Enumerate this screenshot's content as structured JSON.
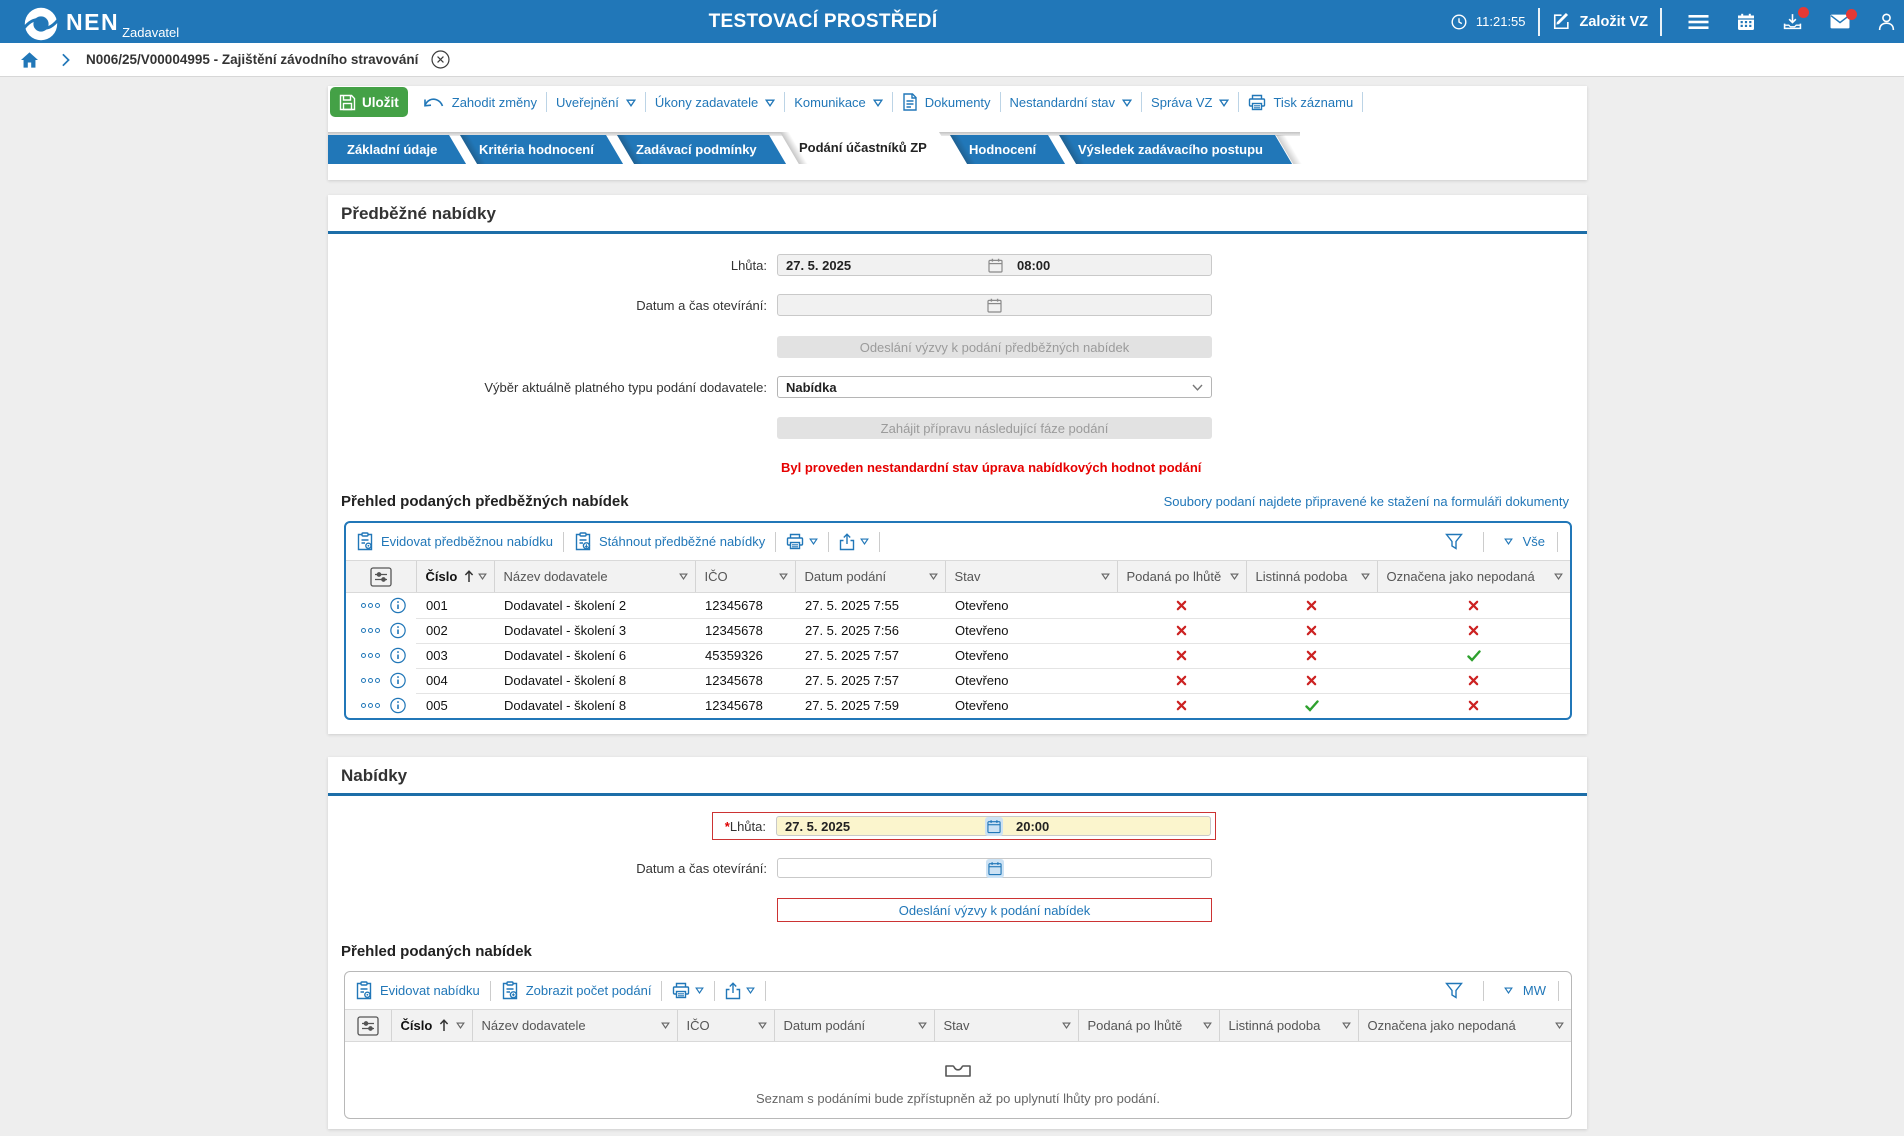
{
  "colors": {
    "brand_blue": "#2077b8",
    "save_green": "#44a146",
    "warning_red": "#e60000",
    "required_yellow": "#fbf5cd",
    "status_cross_red": "#cc2222",
    "status_check_green": "#2ea12e",
    "badge_red": "#e53935"
  },
  "header": {
    "brand": "NEN",
    "brand_sub": "Zadavatel",
    "env_title": "TESTOVACÍ PROSTŘEDÍ",
    "clock": "11:21:55",
    "new_vz_label": "Založit VZ"
  },
  "breadcrumb": {
    "item": "N006/25/V00004995 - Zajištění závodního stravování"
  },
  "toolbar": {
    "save": "Uložit",
    "items": [
      {
        "label": "Zahodit změny",
        "icon": "undo-icon",
        "dd": false
      },
      {
        "label": "Uveřejnění",
        "icon": "",
        "dd": true
      },
      {
        "label": "Úkony zadavatele",
        "icon": "",
        "dd": true
      },
      {
        "label": "Komunikace",
        "icon": "",
        "dd": true
      },
      {
        "label": "Dokumenty",
        "icon": "document-icon",
        "dd": false
      },
      {
        "label": "Nestandardní stav",
        "icon": "",
        "dd": true
      },
      {
        "label": "Správa VZ",
        "icon": "",
        "dd": true
      },
      {
        "label": "Tisk záznamu",
        "icon": "printer-icon",
        "dd": false
      }
    ]
  },
  "tabs": [
    {
      "label": "Základní údaje",
      "active": false
    },
    {
      "label": "Kritéria hodnocení",
      "active": false
    },
    {
      "label": "Zadávací podmínky",
      "active": false
    },
    {
      "label": "Podání účastníků ZP",
      "active": true
    },
    {
      "label": "Hodnocení",
      "active": false
    },
    {
      "label": "Výsledek zadávacího postupu",
      "active": false
    }
  ],
  "prelim": {
    "title": "Předběžné nabídky",
    "deadline_label": "Lhůta:",
    "deadline_date": "27. 5. 2025",
    "deadline_time": "08:00",
    "opening_label": "Datum a čas otevírání:",
    "send_call_button": "Odeslání výzvy k podání předběžných nabídek",
    "type_label": "Výběr aktuálně platného typu podání dodavatele:",
    "type_value": "Nabídka",
    "next_phase_button": "Zahájit přípravu následující fáze podání",
    "warning": "Byl proveden nestandardní stav úprava nabídkových hodnot podání",
    "overview_title": "Přehled podaných předběžných nabídek",
    "files_link": "Soubory podaní najdete připravené ke stažení na formuláři dokumenty",
    "table": {
      "actions": [
        {
          "label": "Evidovat předběžnou nabídku",
          "icon": "clipboard-gear-icon"
        },
        {
          "label": "Stáhnout předběžné nabídky",
          "icon": "clipboard-download-icon"
        }
      ],
      "filter_label": "Vše",
      "sort_column": "Číslo",
      "columns": [
        "Číslo",
        "Název dodavatele",
        "IČO",
        "Datum podání",
        "Stav",
        "Podaná po lhůtě",
        "Listinná podoba",
        "Označena jako nepodaná"
      ],
      "rows": [
        {
          "cislo": "001",
          "nazev": "Dodavatel - školení 2",
          "ico": "12345678",
          "datum": "27. 5. 2025 7:55",
          "stav": "Otevřeno",
          "po_lhute": false,
          "listinna": false,
          "nepodana": false
        },
        {
          "cislo": "002",
          "nazev": "Dodavatel - školení 3",
          "ico": "12345678",
          "datum": "27. 5. 2025 7:56",
          "stav": "Otevřeno",
          "po_lhute": false,
          "listinna": false,
          "nepodana": false
        },
        {
          "cislo": "003",
          "nazev": "Dodavatel - školení 6",
          "ico": "45359326",
          "datum": "27. 5. 2025 7:57",
          "stav": "Otevřeno",
          "po_lhute": false,
          "listinna": false,
          "nepodana": true
        },
        {
          "cislo": "004",
          "nazev": "Dodavatel - školení 8",
          "ico": "12345678",
          "datum": "27. 5. 2025 7:57",
          "stav": "Otevřeno",
          "po_lhute": false,
          "listinna": false,
          "nepodana": false
        },
        {
          "cislo": "005",
          "nazev": "Dodavatel - školení 8",
          "ico": "12345678",
          "datum": "27. 5. 2025 7:59",
          "stav": "Otevřeno",
          "po_lhute": false,
          "listinna": true,
          "nepodana": false
        }
      ]
    }
  },
  "bids": {
    "title": "Nabídky",
    "required_mark": "*",
    "deadline_label": "Lhůta:",
    "deadline_date": "27. 5. 2025",
    "deadline_time": "20:00",
    "opening_label": "Datum a čas otevírání:",
    "send_call_button": "Odeslání výzvy k podání nabídek",
    "overview_title": "Přehled podaných nabídek",
    "table": {
      "actions": [
        {
          "label": "Evidovat nabídku",
          "icon": "clipboard-gear-icon"
        },
        {
          "label": "Zobrazit počet podání",
          "icon": "clipboard-count-icon"
        }
      ],
      "filter_label": "MW",
      "sort_column": "Číslo",
      "columns": [
        "Číslo",
        "Název dodavatele",
        "IČO",
        "Datum podání",
        "Stav",
        "Podaná po lhůtě",
        "Listinná podoba",
        "Označena jako nepodaná"
      ],
      "empty_message": "Seznam s podáními bude zpřístupněn až po uplynutí lhůty pro podání."
    }
  }
}
